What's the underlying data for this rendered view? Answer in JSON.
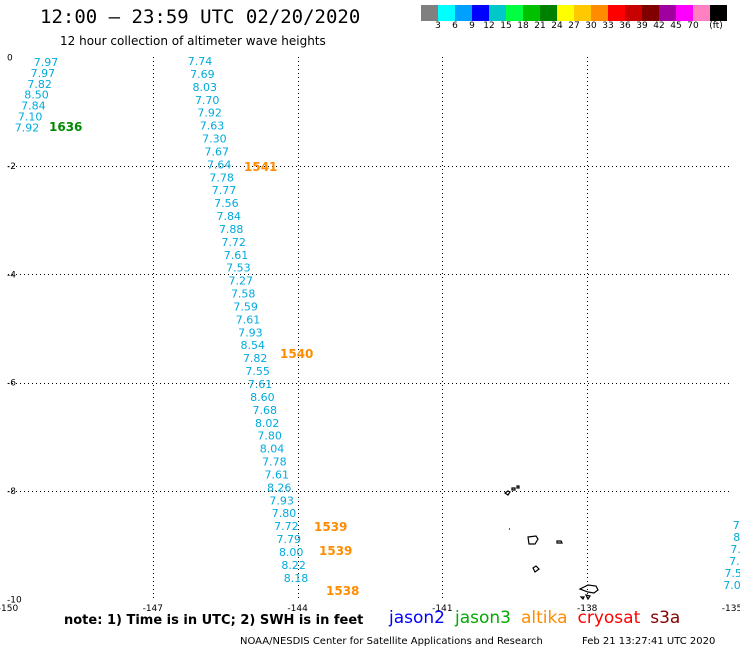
{
  "header": {
    "title": "12:00 – 23:59 UTC 02/20/2020",
    "subtitle": "12 hour collection of altimeter wave heights"
  },
  "scale": {
    "colors": [
      "#808080",
      "#00ffff",
      "#00a0ff",
      "#0000ff",
      "#00c8c8",
      "#00ff40",
      "#00c000",
      "#008000",
      "#ffff00",
      "#ffc800",
      "#ff8c00",
      "#ff0000",
      "#c80000",
      "#800000",
      "#a000a0",
      "#ff00ff",
      "#ff80c0",
      "#000000"
    ],
    "labels": [
      "3",
      "6",
      "9",
      "12",
      "15",
      "18",
      "21",
      "24",
      "27",
      "30",
      "33",
      "36",
      "39",
      "42",
      "45",
      "70",
      "(ft)"
    ]
  },
  "map": {
    "lon_range": [
      -150,
      -135
    ],
    "lat_range": [
      -10,
      0
    ],
    "x_ticks": [
      "-150",
      "-147",
      "-144",
      "-141",
      "-138",
      "-135"
    ],
    "y_ticks": [
      "0",
      "-2",
      "-4",
      "-6",
      "-8",
      "-10"
    ],
    "land_color": "#000000",
    "grid_color": "#000000"
  },
  "tracks": [
    {
      "satellite": "jason3",
      "color": "#00aadd",
      "values": [
        "7.97",
        "7.97",
        "7.82",
        "8.50",
        "7.84",
        "7.10",
        "7.92"
      ],
      "time_labels": [
        {
          "text": "1636",
          "color": "#008800"
        }
      ]
    },
    {
      "satellite": "altika",
      "color": "#00aadd",
      "values": [
        "7.74",
        "7.69",
        "8.03",
        "7.70",
        "7.92",
        "7.63",
        "7.30",
        "7.67",
        "7.64",
        "7.78",
        "7.77",
        "7.56",
        "7.84",
        "7.88",
        "7.72",
        "7.61",
        "7.53",
        "7.27",
        "7.58",
        "7.59",
        "7.61",
        "7.93",
        "8.54",
        "7.82",
        "7.55",
        "7.61",
        "8.60",
        "7.68",
        "8.02",
        "7.80",
        "8.04",
        "7.78",
        "7.61",
        "8.26",
        "7.93",
        "7.80",
        "7.72",
        "7.79",
        "8.00",
        "8.22",
        "8.18"
      ],
      "time_labels": [
        {
          "text": "1541",
          "color": "#ff8c00"
        },
        {
          "text": "1540",
          "color": "#ff8c00"
        },
        {
          "text": "1539",
          "color": "#ff8c00"
        },
        {
          "text": "1539",
          "color": "#ff8c00"
        },
        {
          "text": "1538",
          "color": "#ff8c00"
        }
      ]
    },
    {
      "satellite": "right-edge",
      "color": "#00aadd",
      "values": [
        "7.",
        "8",
        "7.",
        "7.",
        "7.5",
        "7.0"
      ],
      "time_labels": []
    }
  ],
  "footer": {
    "note": "note:  1) Time is in UTC;  2) SWH is in feet",
    "legend": [
      {
        "label": "jason2",
        "color": "#0000ff"
      },
      {
        "label": "jason3",
        "color": "#00aa00"
      },
      {
        "label": "altika",
        "color": "#ff8c00"
      },
      {
        "label": "cryosat",
        "color": "#ff0000"
      },
      {
        "label": "s3a",
        "color": "#880000"
      }
    ],
    "credit": "NOAA/NESDIS Center for Satellite Applications and Research",
    "timestamp": "Feb 21 13:27:41 UTC 2020"
  }
}
